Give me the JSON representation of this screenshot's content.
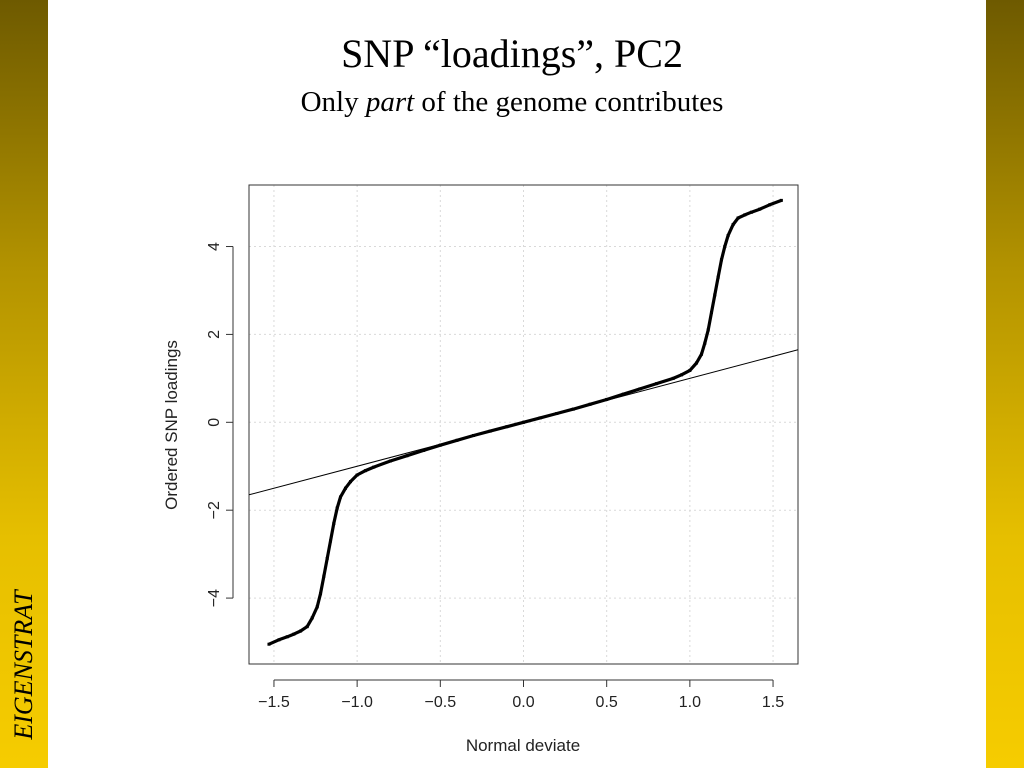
{
  "slide": {
    "title": "SNP “loadings”, PC2",
    "subtitle_start": "Only",
    "subtitle_italic": "part",
    "subtitle_end": "of the genome contributes",
    "side_label": "EIGENSTRAT",
    "accent_color": "#d6b000"
  },
  "chart_data": {
    "type": "scatter",
    "xlabel": "Normal deviate",
    "ylabel": "Ordered SNP loadings",
    "xlim": [
      -1.65,
      1.65
    ],
    "ylim": [
      -5.5,
      5.4
    ],
    "xticks": [
      "−1.5",
      "−1.0",
      "−0.5",
      "0.0",
      "0.5",
      "1.0",
      "1.5"
    ],
    "xtick_values": [
      -1.5,
      -1.0,
      -0.5,
      0.0,
      0.5,
      1.0,
      1.5
    ],
    "yticks": [
      "−4",
      "−2",
      "0",
      "2",
      "4"
    ],
    "ytick_values": [
      -4,
      -2,
      0,
      2,
      4
    ],
    "grid": true,
    "reference_line": {
      "slope": 1.0,
      "intercept": 0.0
    },
    "series": [
      {
        "points": [
          [
            -1.53,
            -5.05
          ],
          [
            -1.47,
            -4.95
          ],
          [
            -1.42,
            -4.88
          ],
          [
            -1.38,
            -4.82
          ],
          [
            -1.34,
            -4.75
          ],
          [
            -1.3,
            -4.65
          ],
          [
            -1.27,
            -4.45
          ],
          [
            -1.24,
            -4.2
          ],
          [
            -1.22,
            -3.9
          ],
          [
            -1.2,
            -3.5
          ],
          [
            -1.18,
            -3.1
          ],
          [
            -1.16,
            -2.7
          ],
          [
            -1.14,
            -2.3
          ],
          [
            -1.12,
            -1.95
          ],
          [
            -1.1,
            -1.7
          ],
          [
            -1.07,
            -1.5
          ],
          [
            -1.04,
            -1.35
          ],
          [
            -1.0,
            -1.2
          ],
          [
            -0.95,
            -1.1
          ],
          [
            -0.9,
            -1.02
          ],
          [
            -0.8,
            -0.88
          ],
          [
            -0.7,
            -0.76
          ],
          [
            -0.6,
            -0.64
          ],
          [
            -0.5,
            -0.52
          ],
          [
            -0.4,
            -0.41
          ],
          [
            -0.3,
            -0.3
          ],
          [
            -0.2,
            -0.2
          ],
          [
            -0.1,
            -0.1
          ],
          [
            0.0,
            0.0
          ],
          [
            0.1,
            0.1
          ],
          [
            0.2,
            0.2
          ],
          [
            0.3,
            0.3
          ],
          [
            0.4,
            0.41
          ],
          [
            0.5,
            0.52
          ],
          [
            0.6,
            0.64
          ],
          [
            0.7,
            0.76
          ],
          [
            0.8,
            0.88
          ],
          [
            0.9,
            1.0
          ],
          [
            0.95,
            1.08
          ],
          [
            1.0,
            1.18
          ],
          [
            1.04,
            1.35
          ],
          [
            1.07,
            1.55
          ],
          [
            1.09,
            1.8
          ],
          [
            1.11,
            2.1
          ],
          [
            1.13,
            2.5
          ],
          [
            1.15,
            2.9
          ],
          [
            1.17,
            3.3
          ],
          [
            1.19,
            3.7
          ],
          [
            1.21,
            4.0
          ],
          [
            1.23,
            4.25
          ],
          [
            1.26,
            4.5
          ],
          [
            1.29,
            4.65
          ],
          [
            1.33,
            4.72
          ],
          [
            1.37,
            4.78
          ],
          [
            1.42,
            4.85
          ],
          [
            1.48,
            4.95
          ],
          [
            1.55,
            5.05
          ]
        ]
      }
    ]
  }
}
